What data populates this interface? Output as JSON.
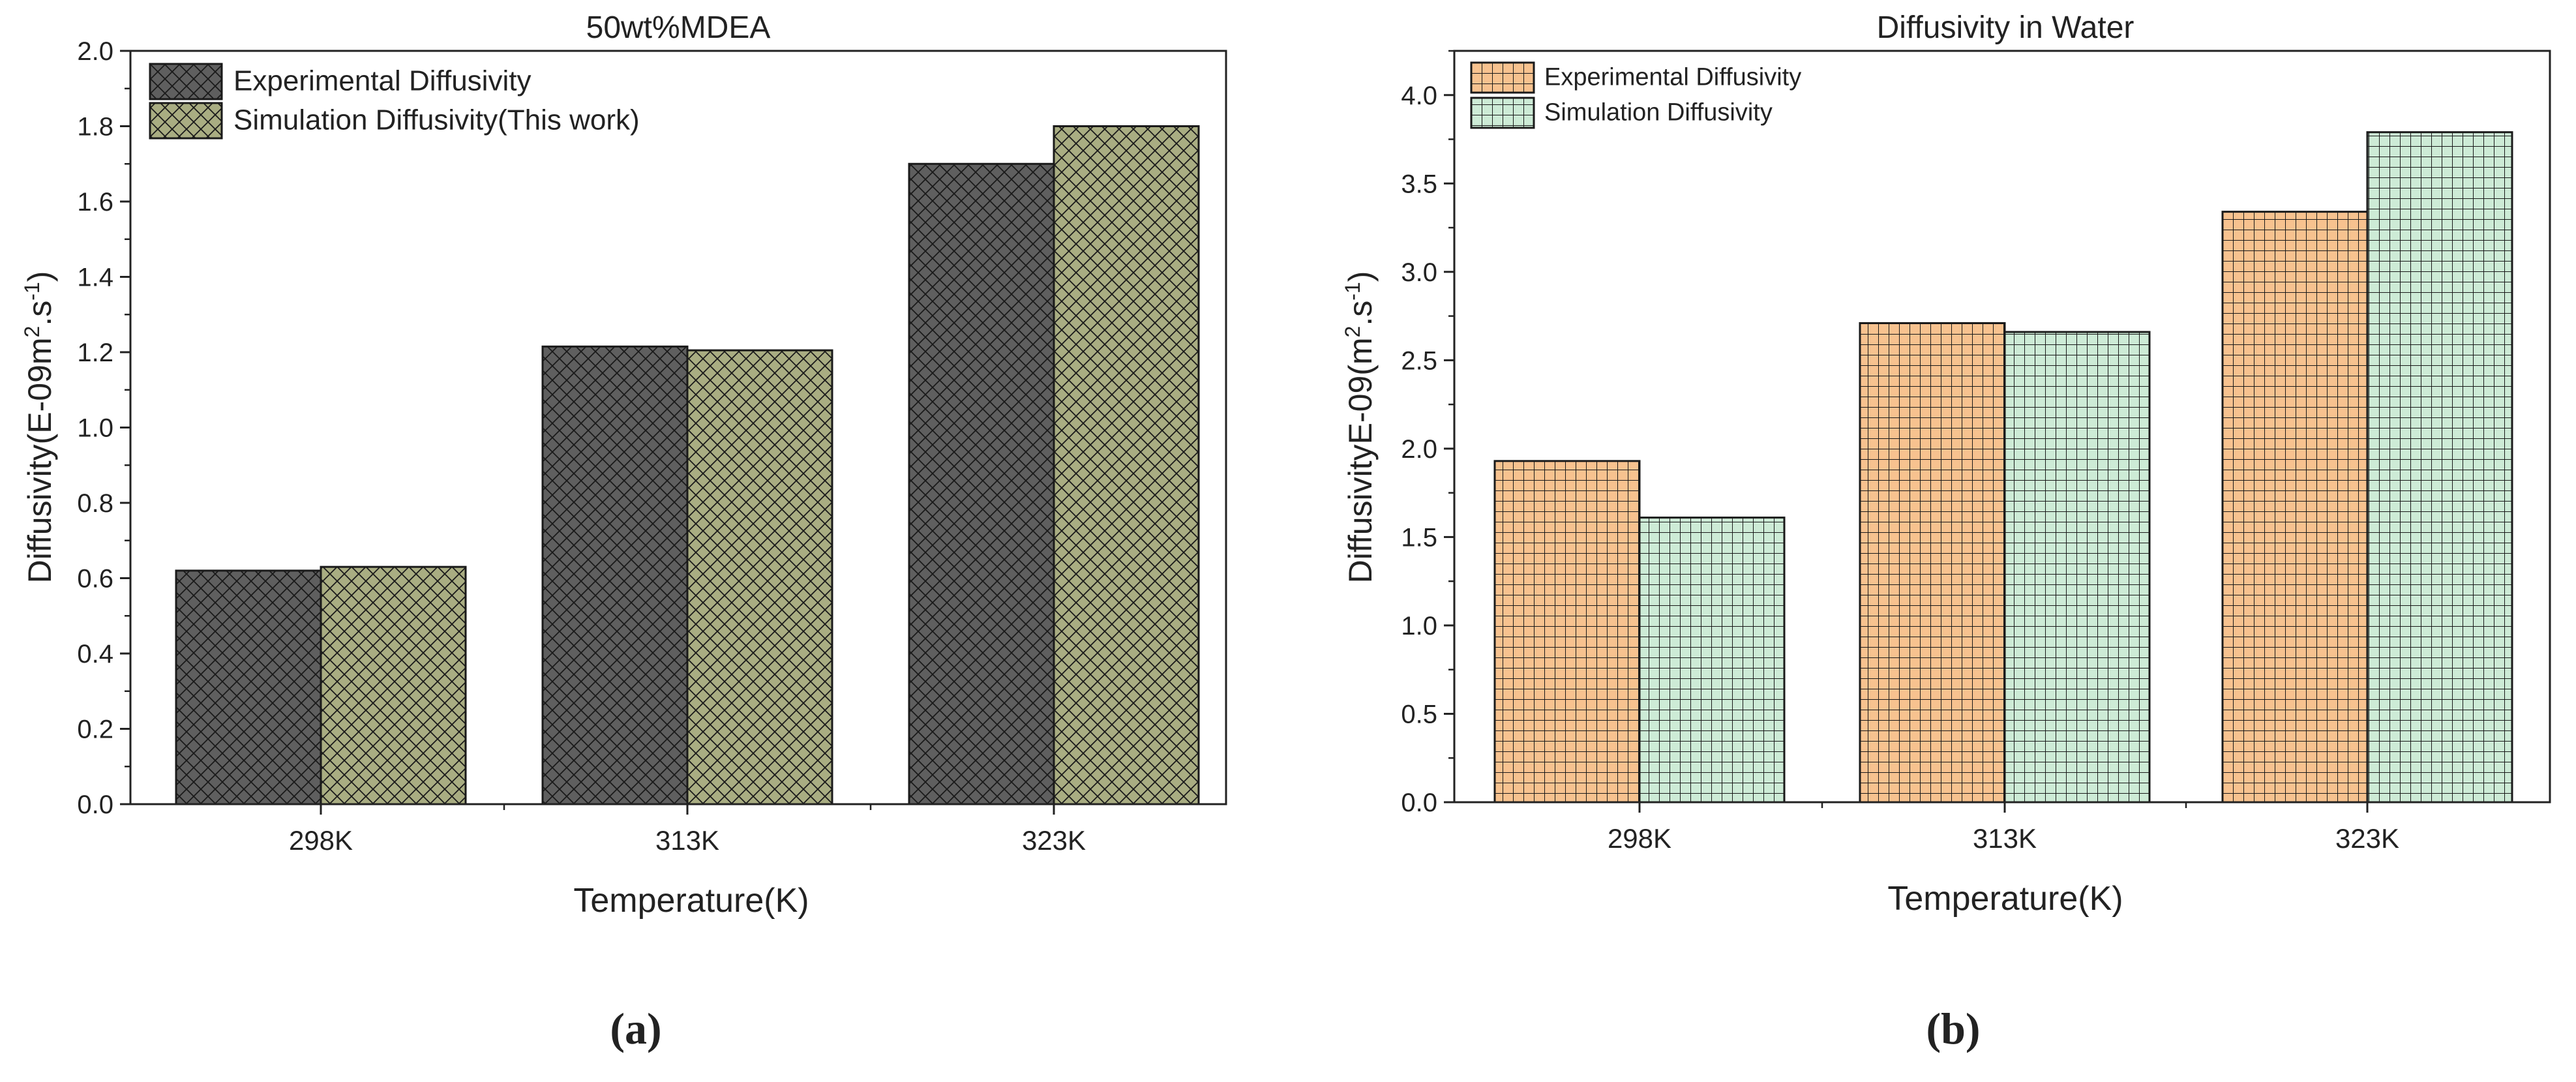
{
  "chart_data": [
    {
      "type": "bar",
      "panel_label": "(a)",
      "title": "50wt%MDEA",
      "xlabel": "Temperature(K)",
      "ylabel": {
        "prefix": "Diffusivity(E-09m",
        "sup1": "2",
        "mid": ".s",
        "sup2": "-1",
        "suffix": ")"
      },
      "ylim": [
        0,
        2.0
      ],
      "yticks": [
        "0.0",
        "0.2",
        "0.4",
        "0.6",
        "0.8",
        "1.0",
        "1.2",
        "1.4",
        "1.6",
        "1.8",
        "2.0"
      ],
      "categories": [
        "298K",
        "313K",
        "323K"
      ],
      "legend_position": "top-left",
      "series": [
        {
          "name": "Experimental Diffusivity",
          "values": [
            0.62,
            1.215,
            1.7
          ],
          "color": "#5f5f5f",
          "hatch": "crosshatch-diagonal"
        },
        {
          "name": "Simulation Diffusivity(This work)",
          "values": [
            0.63,
            1.205,
            1.8
          ],
          "color": "#a9ad82",
          "hatch": "crosshatch-diagonal"
        }
      ]
    },
    {
      "type": "bar",
      "panel_label": "(b)",
      "title": "Diffusivity in Water",
      "xlabel": "Temperature(K)",
      "ylabel": {
        "prefix": "DiffusivityE-09(m",
        "sup1": "2",
        "mid": ".s",
        "sup2": "-1",
        "suffix": ")"
      },
      "ylim": [
        0,
        4.25
      ],
      "yticks": [
        "0.0",
        "0.5",
        "1.0",
        "1.5",
        "2.0",
        "2.5",
        "3.0",
        "3.5",
        "4.0"
      ],
      "categories": [
        "298K",
        "313K",
        "323K"
      ],
      "legend_position": "top-left",
      "series": [
        {
          "name": "Experimental Diffusivity",
          "values": [
            1.93,
            2.71,
            3.34
          ],
          "color": "#f7c28f",
          "hatch": "grid"
        },
        {
          "name": "Simulation Diffusivity",
          "values": [
            1.61,
            2.66,
            3.79
          ],
          "color": "#cdebd6",
          "hatch": "grid"
        }
      ]
    }
  ]
}
